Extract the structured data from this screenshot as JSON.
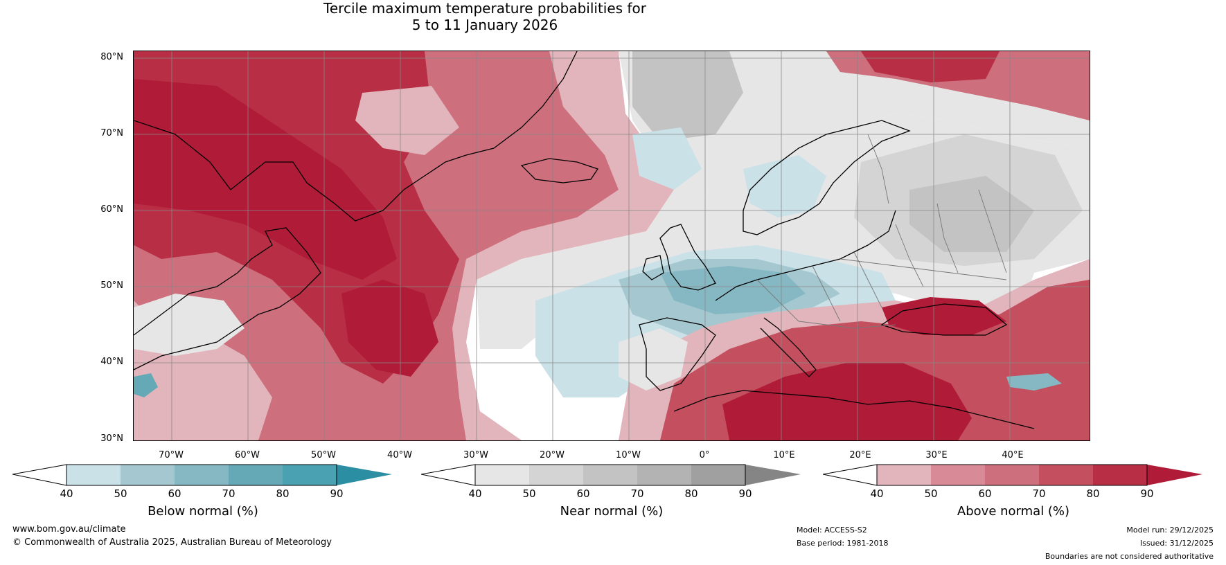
{
  "title": {
    "line1": "Tercile maximum temperature probabilities for",
    "line2": "5 to 11 January 2026"
  },
  "map": {
    "lat_labels": [
      "80°N",
      "70°N",
      "60°N",
      "50°N",
      "40°N",
      "30°N"
    ],
    "lon_labels": [
      "70°W",
      "60°W",
      "50°W",
      "40°W",
      "30°W",
      "20°W",
      "10°W",
      "0°",
      "10°E",
      "20°E",
      "30°E",
      "40°E"
    ],
    "colors": {
      "ocean_base": "#ffffff",
      "above_40": "#e2b5bc",
      "above_50": "#d98a97",
      "above_60": "#cd6f7d",
      "above_70": "#c4505f",
      "above_80": "#b82e44",
      "above_90": "#b01c38",
      "near_40": "#e6e6e6",
      "near_50": "#d4d4d4",
      "near_60": "#c3c3c3",
      "below_40": "#c9e1e7",
      "below_50": "#a5c8d0",
      "below_60": "#86b8c3",
      "below_70": "#65a9b7"
    }
  },
  "colorbars": [
    {
      "title": "Below normal (%)",
      "ticks": [
        "40",
        "50",
        "60",
        "70",
        "80",
        "90"
      ],
      "colors": [
        "#c9e1e7",
        "#a5c8d0",
        "#86b8c3",
        "#65a9b7",
        "#49a1b2",
        "#2b8ea3"
      ]
    },
    {
      "title": "Near normal (%)",
      "ticks": [
        "40",
        "50",
        "60",
        "70",
        "80",
        "90"
      ],
      "colors": [
        "#e6e6e6",
        "#d4d4d4",
        "#c3c3c3",
        "#b3b3b3",
        "#a0a0a0",
        "#858585"
      ]
    },
    {
      "title": "Above normal (%)",
      "ticks": [
        "40",
        "50",
        "60",
        "70",
        "80",
        "90"
      ],
      "colors": [
        "#e2b5bc",
        "#d98a97",
        "#cd6f7d",
        "#c4505f",
        "#b82e44",
        "#b01c38"
      ]
    }
  ],
  "footer": {
    "website": "www.bom.gov.au/climate",
    "copyright": "© Commonwealth of Australia 2025, Australian Bureau of Meteorology",
    "model": "Model: ACCESS-S2",
    "base_period": "Base period: 1981-2018",
    "model_run": "Model run: 29/12/2025",
    "issued": "Issued: 31/12/2025",
    "disclaimer": "Boundaries are not considered authoritative"
  }
}
